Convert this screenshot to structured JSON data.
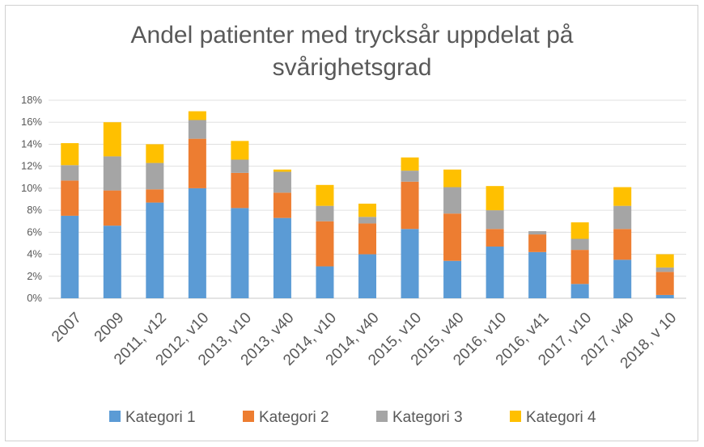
{
  "chart_data": {
    "type": "bar",
    "stacked": true,
    "title_lines": [
      "Andel patienter med trycksår uppdelat på",
      "svårighetsgrad"
    ],
    "categories": [
      "2007",
      "2009",
      "2011, v12",
      "2012, v10",
      "2013, v10",
      "2013, v40",
      "2014, v10",
      "2014, v40",
      "2015, v10",
      "2015, v40",
      "2016, v10",
      "2016, v41",
      "2017, v10",
      "2017, v40",
      "2018, v 10"
    ],
    "series": [
      {
        "name": "Kategori 1",
        "color": "#5B9BD5",
        "values": [
          7.5,
          6.6,
          8.7,
          10.0,
          8.2,
          7.3,
          2.9,
          4.0,
          6.3,
          3.4,
          4.7,
          4.2,
          1.3,
          3.5,
          0.3
        ]
      },
      {
        "name": "Kategori 2",
        "color": "#ED7D31",
        "values": [
          3.2,
          3.2,
          1.2,
          4.5,
          3.2,
          2.3,
          4.1,
          2.8,
          4.3,
          4.3,
          1.6,
          1.6,
          3.1,
          2.8,
          2.1
        ]
      },
      {
        "name": "Kategori 3",
        "color": "#A5A5A5",
        "values": [
          1.4,
          3.1,
          2.4,
          1.7,
          1.2,
          1.9,
          1.4,
          0.6,
          1.0,
          2.4,
          1.7,
          0.3,
          1.0,
          2.1,
          0.4
        ]
      },
      {
        "name": "Kategori 4",
        "color": "#FFC000",
        "values": [
          2.0,
          3.1,
          1.7,
          0.8,
          1.7,
          0.2,
          1.9,
          1.2,
          1.2,
          1.6,
          2.2,
          0.0,
          1.5,
          1.7,
          1.2
        ]
      }
    ],
    "yticks": [
      "0%",
      "2%",
      "4%",
      "6%",
      "8%",
      "10%",
      "12%",
      "14%",
      "16%",
      "18%"
    ],
    "ylim": [
      0,
      18
    ],
    "gridlines": true,
    "legend_position": "bottom"
  }
}
